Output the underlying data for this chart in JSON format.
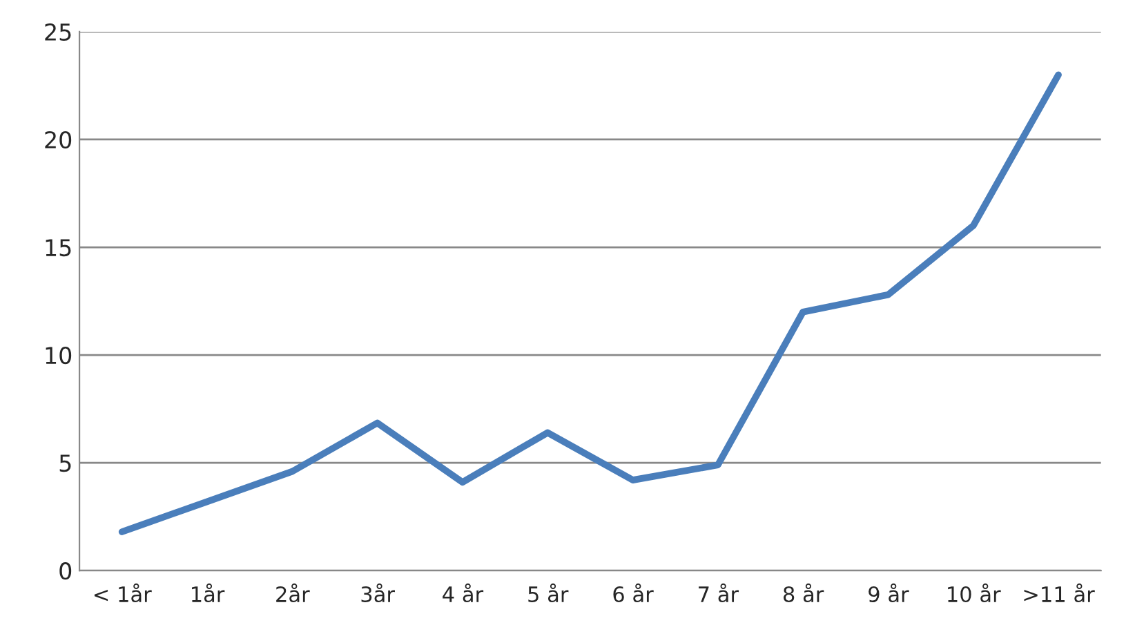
{
  "chart_data": {
    "type": "line",
    "categories": [
      "< 1år",
      "1år",
      "2år",
      "3år",
      "4 år",
      "5 år",
      "6 år",
      "7 år",
      "8 år",
      "9 år",
      "10 år",
      ">11 år"
    ],
    "series": [
      {
        "color": "#4a7ebb",
        "values": [
          1.8,
          3.2,
          4.6,
          6.85,
          4.1,
          6.4,
          4.2,
          4.9,
          12.0,
          12.8,
          16.0,
          23.0
        ]
      }
    ],
    "ylim": [
      0,
      25
    ],
    "yticks": [
      0,
      5,
      10,
      15,
      20,
      25
    ],
    "grid": "y",
    "marker": "none",
    "line_style": "solid"
  }
}
